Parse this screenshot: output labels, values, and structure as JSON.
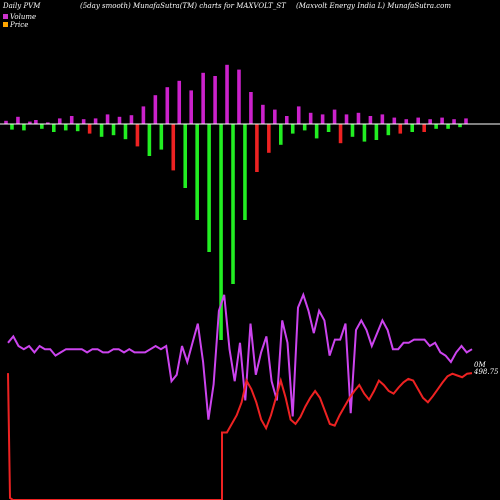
{
  "header": {
    "left": "Daily PVM",
    "center": "(5day smooth) MunafaSutra(TM) charts for MAXVOLT_ST",
    "right": "(Maxvolt Energy India L) MunafaSutra.com"
  },
  "legend": {
    "volume_label": "Volume",
    "price_label": "Price",
    "volume_color": "#cc33cc",
    "price_color": "#ffa500"
  },
  "last_labels": {
    "volume": "0M",
    "price": "498.75"
  },
  "colors": {
    "background": "#000000",
    "baseline": "#ffffff",
    "volume_up": "#cc22cc",
    "volume_down_green": "#22ee22",
    "volume_down_red": "#ee2222",
    "volume_line": "#cc44ee",
    "price_line": "#ee2222"
  },
  "chart_data": {
    "type": "bar",
    "note_units": "relative",
    "pvm_bars": {
      "values": [
        0.2,
        -0.35,
        0.45,
        -0.4,
        0.15,
        0.25,
        -0.3,
        0.1,
        -0.5,
        0.35,
        -0.4,
        0.5,
        -0.45,
        0.3,
        -0.6,
        0.35,
        -0.8,
        0.6,
        -0.7,
        0.45,
        -0.95,
        0.55,
        -1.4,
        1.1,
        -2.0,
        1.8,
        -1.6,
        2.3,
        -2.9,
        2.7,
        -4.0,
        2.1,
        -6.0,
        3.2,
        -8.0,
        3.0,
        -13.5,
        3.7,
        -10.0,
        3.4,
        -6.0,
        2.0,
        -3.0,
        1.2,
        -1.8,
        0.9,
        -1.3,
        0.5,
        -0.6,
        1.1,
        -0.4,
        0.7,
        -0.9,
        0.6,
        -0.5,
        0.9,
        -1.2,
        0.6,
        -0.8,
        0.7,
        -1.1,
        0.5,
        -1.0,
        0.6,
        -0.7,
        0.4,
        -0.6,
        0.3,
        -0.5,
        0.4,
        -0.5,
        0.3,
        -0.3,
        0.4,
        -0.3,
        0.3,
        -0.2,
        0.35
      ],
      "down_colors": "green_or_red"
    },
    "volume_line": [
      -6,
      -8,
      -5,
      -4,
      -5,
      -3,
      -5,
      -4,
      -4,
      -2,
      -3,
      -4,
      -4,
      -4,
      -4,
      -3,
      -4,
      -4,
      -3,
      -3,
      -4,
      -4,
      -3,
      -4,
      -3,
      -3,
      -3,
      -4,
      -5,
      -4,
      -5,
      6,
      4,
      -5,
      0,
      -6,
      -12,
      0,
      18,
      7,
      -16,
      -21,
      -4,
      6,
      -6,
      12,
      -12,
      4,
      -3,
      -8,
      6,
      12,
      -13,
      -6,
      17,
      -17,
      -21,
      -16,
      -9,
      -16,
      -13,
      -2,
      -7,
      -7,
      -12,
      16,
      -10,
      -13,
      -10,
      -5,
      -9,
      -13,
      -10,
      -4,
      -4,
      -6,
      -6,
      -7,
      -7,
      -7,
      -5,
      -6,
      -3,
      -2,
      0,
      -3,
      -5,
      -3,
      -4
    ],
    "price_line": [
      498.75,
      452,
      400,
      358,
      352,
      352,
      352,
      352,
      352,
      352,
      352,
      352,
      352,
      352,
      352,
      352,
      352,
      352,
      352,
      352,
      352,
      352,
      352,
      352,
      352,
      352,
      352,
      352,
      352,
      352,
      352,
      352,
      352,
      352,
      352,
      352,
      352,
      352,
      352,
      352,
      352,
      352,
      352,
      352,
      352,
      352,
      352,
      352,
      352,
      352,
      352,
      352,
      352,
      352,
      352,
      352,
      352,
      352,
      352,
      352,
      352,
      352,
      352,
      352,
      352,
      352,
      352,
      352,
      352,
      352,
      352,
      352,
      352,
      352,
      352,
      352,
      352,
      352,
      352,
      352,
      352,
      352,
      352,
      352,
      352,
      352,
      352,
      352,
      352
    ],
    "price_tail": [
      430,
      430,
      440,
      450,
      465,
      490,
      480,
      465,
      445,
      435,
      450,
      470,
      490,
      470,
      445,
      440,
      448,
      460,
      470,
      478,
      470,
      455,
      440,
      438,
      450,
      460,
      470,
      478,
      485,
      475,
      468,
      478,
      490,
      485,
      478,
      475,
      482,
      488,
      492,
      490,
      480,
      470,
      465,
      472,
      480,
      488,
      495,
      498,
      496,
      494,
      498,
      498.75
    ]
  }
}
